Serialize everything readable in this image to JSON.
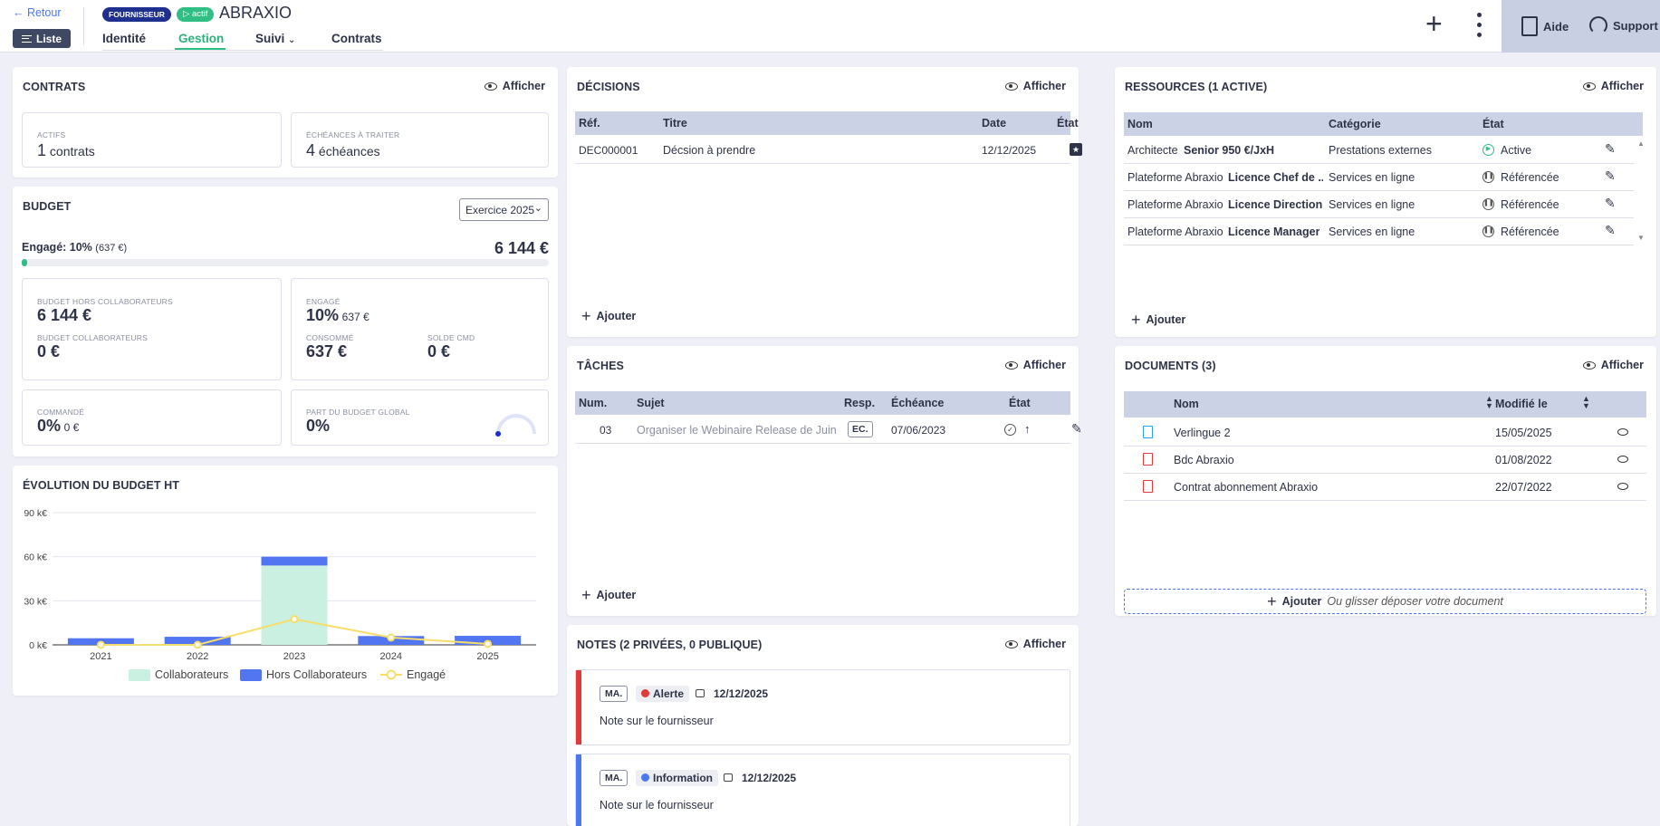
{
  "header": {
    "back": "Retour",
    "list": "Liste",
    "type_badge": "FOURNISSEUR",
    "status_badge": "actif",
    "title": "ABRAXIO",
    "tabs": [
      "Identité",
      "Gestion",
      "Suivi",
      "Contrats"
    ],
    "help": "Aide",
    "support": "Support"
  },
  "common": {
    "show": "Afficher",
    "add": "Ajouter"
  },
  "contrats": {
    "title": "CONTRATS",
    "active_label": "ACTIFS",
    "active_count": "1",
    "active_unit": "contrats",
    "due_label": "ÉCHÉANCES À TRAITER",
    "due_count": "4",
    "due_unit": "échéances"
  },
  "budget": {
    "title": "BUDGET",
    "year_select": "Exercice 2025",
    "engaged_label": "Engagé: 10%",
    "engaged_detail": "(637 €)",
    "engaged_percent": 10,
    "total": "6 144 €",
    "hors_label": "BUDGET HORS COLLABORATEURS",
    "hors_value": "6 144 €",
    "collab_label": "BUDGET COLLABORATEURS",
    "collab_value": "0 €",
    "engage_label": "ENGAGÉ",
    "engage_value": "10%",
    "engage_sub": "637 €",
    "consomme_label": "CONSOMMÉ",
    "consomme_value": "637 €",
    "solde_label": "SOLDE CMD",
    "solde_value": "0 €",
    "commande_label": "COMMANDÉ",
    "commande_value": "0%",
    "commande_sub": "0 €",
    "part_label": "PART DU BUDGET GLOBAL",
    "part_value": "0%"
  },
  "evolution": {
    "title": "ÉVOLUTION DU BUDGET HT"
  },
  "chart_data": {
    "type": "bar",
    "categories": [
      "2021",
      "2022",
      "2023",
      "2024",
      "2025"
    ],
    "series": [
      {
        "name": "Collaborateurs",
        "type": "bar",
        "stack": "budget",
        "values": [
          0,
          0,
          54000,
          0,
          0
        ],
        "color": "#c9f0e0"
      },
      {
        "name": "Hors Collaborateurs",
        "type": "bar",
        "stack": "budget",
        "values": [
          4500,
          5500,
          6000,
          6000,
          6144
        ],
        "color": "#5275f2"
      },
      {
        "name": "Engagé",
        "type": "line",
        "values": [
          0,
          0,
          17500,
          5000,
          637
        ],
        "color": "#f7dd6a"
      }
    ],
    "yticks": [
      "0 k€",
      "30 k€",
      "60 k€",
      "90 k€"
    ],
    "ylim": [
      0,
      90000
    ],
    "legend": "bottom"
  },
  "decisions": {
    "title": "DÉCISIONS",
    "columns": [
      "Réf.",
      "Titre",
      "Date",
      "État"
    ],
    "rows": [
      {
        "ref": "DEC000001",
        "titre": "Décsion à prendre",
        "date": "12/12/2025"
      }
    ]
  },
  "taches": {
    "title": "TÂCHES",
    "columns": [
      "Num.",
      "Sujet",
      "Resp.",
      "Échéance",
      "État"
    ],
    "rows": [
      {
        "num": "03",
        "sujet": "Organiser le Webinaire Release de Juin",
        "resp": "EC.",
        "echeance": "07/06/2023"
      }
    ]
  },
  "notes": {
    "title": "NOTES (2 PRIVÉES, 0 PUBLIQUE)",
    "items": [
      {
        "author": "MA.",
        "tag": "Alerte",
        "tag_color": "#e03a3a",
        "date": "12/12/2025",
        "text": "Note sur le fournisseur",
        "bar": "#e03a3a"
      },
      {
        "author": "MA.",
        "tag": "Information",
        "tag_color": "#4b77f0",
        "date": "12/12/2025",
        "text": "Note sur le fournisseur",
        "bar": "#4b77f0"
      }
    ]
  },
  "ressources": {
    "title": "RESSOURCES (1 ACTIVE)",
    "columns": [
      "Nom",
      "Catégorie",
      "État"
    ],
    "rows": [
      {
        "nom": "Architecte",
        "detail": "Senior 950 €/JxH",
        "categorie": "Prestations externes",
        "etat": "Active"
      },
      {
        "nom": "Plateforme Abraxio",
        "detail": "Licence Chef de ...",
        "categorie": "Services en ligne",
        "etat": "Référencée"
      },
      {
        "nom": "Plateforme Abraxio",
        "detail": "Licence Direction",
        "categorie": "Services en ligne",
        "etat": "Référencée"
      },
      {
        "nom": "Plateforme Abraxio",
        "detail": "Licence Manager",
        "categorie": "Services en ligne",
        "etat": "Référencée"
      }
    ]
  },
  "documents": {
    "title": "DOCUMENTS (3)",
    "columns": [
      "Nom",
      "Modifié le"
    ],
    "rows": [
      {
        "nom": "Verlingue 2",
        "date": "15/05/2025",
        "kind": "doc"
      },
      {
        "nom": "Bdc Abraxio",
        "date": "01/08/2022",
        "kind": "pdf"
      },
      {
        "nom": "Contrat abonnement Abraxio",
        "date": "22/07/2022",
        "kind": "pdf"
      }
    ],
    "drop_hint": "Ou glisser déposer votre document"
  }
}
